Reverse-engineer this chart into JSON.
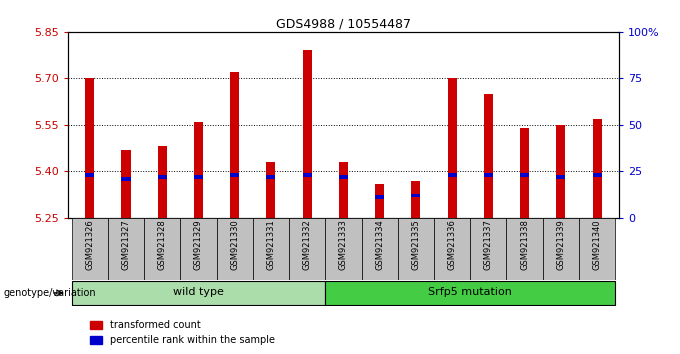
{
  "title": "GDS4988 / 10554487",
  "samples": [
    "GSM921326",
    "GSM921327",
    "GSM921328",
    "GSM921329",
    "GSM921330",
    "GSM921331",
    "GSM921332",
    "GSM921333",
    "GSM921334",
    "GSM921335",
    "GSM921336",
    "GSM921337",
    "GSM921338",
    "GSM921339",
    "GSM921340"
  ],
  "transformed_count": [
    5.7,
    5.47,
    5.48,
    5.56,
    5.72,
    5.43,
    5.79,
    5.43,
    5.36,
    5.37,
    5.7,
    5.65,
    5.54,
    5.55,
    5.57
  ],
  "percentile_rank": [
    22,
    20,
    21,
    21,
    22,
    21,
    22,
    21,
    10,
    11,
    22,
    22,
    22,
    21,
    22
  ],
  "y_min": 5.25,
  "y_max": 5.85,
  "y_ticks": [
    5.25,
    5.4,
    5.55,
    5.7,
    5.85
  ],
  "right_y_labels": [
    "0",
    "25",
    "50",
    "75",
    "100%"
  ],
  "right_y_pcts": [
    0,
    25,
    50,
    75,
    100
  ],
  "grid_lines": [
    5.4,
    5.55,
    5.7
  ],
  "bar_color": "#cc0000",
  "blue_color": "#0000cc",
  "bar_width": 0.25,
  "wt_color": "#aaddaa",
  "mut_color": "#44cc44",
  "tick_color_left": "#cc0000",
  "tick_color_right": "#0000cc",
  "xticklabel_bg": "#c0c0c0",
  "legend_items": [
    {
      "label": "transformed count",
      "color": "#cc0000"
    },
    {
      "label": "percentile rank within the sample",
      "color": "#0000cc"
    }
  ],
  "group_label": "genotype/variation"
}
